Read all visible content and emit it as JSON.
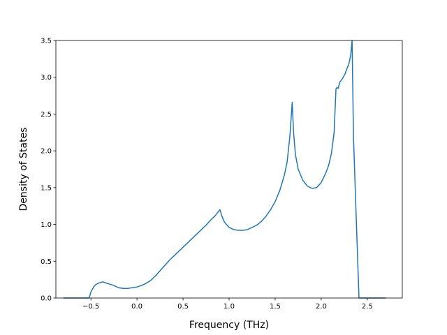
{
  "chart_data": {
    "type": "line",
    "title": "",
    "xlabel": "Frequency (THz)",
    "ylabel": "Density of States",
    "xlim": [
      -0.88,
      2.88
    ],
    "ylim": [
      0.0,
      3.5
    ],
    "xticks": [
      -0.5,
      0.0,
      0.5,
      1.0,
      1.5,
      2.0,
      2.5
    ],
    "xtick_labels": [
      "−0.5",
      "0.0",
      "0.5",
      "1.0",
      "1.5",
      "2.0",
      "2.5"
    ],
    "yticks": [
      0.0,
      0.5,
      1.0,
      1.5,
      2.0,
      2.5,
      3.0,
      3.5
    ],
    "ytick_labels": [
      "0.0",
      "0.5",
      "1.0",
      "1.5",
      "2.0",
      "2.5",
      "3.0",
      "3.5"
    ],
    "grid": false,
    "legend": false,
    "line_color": "#1f77b4",
    "series": [
      {
        "x": [
          -0.8,
          -0.52,
          -0.5,
          -0.47,
          -0.45,
          -0.42,
          -0.4,
          -0.37,
          -0.35,
          -0.3,
          -0.25,
          -0.2,
          -0.15,
          -0.1,
          -0.05,
          0.0,
          0.05,
          0.1,
          0.15,
          0.2,
          0.25,
          0.3,
          0.35,
          0.4,
          0.45,
          0.5,
          0.55,
          0.6,
          0.65,
          0.7,
          0.75,
          0.8,
          0.85,
          0.9,
          0.92,
          0.95,
          1.0,
          1.05,
          1.1,
          1.15,
          1.2,
          1.25,
          1.3,
          1.35,
          1.4,
          1.45,
          1.5,
          1.55,
          1.6,
          1.63,
          1.66,
          1.685,
          1.7,
          1.72,
          1.75,
          1.8,
          1.85,
          1.9,
          1.95,
          2.0,
          2.05,
          2.08,
          2.11,
          2.14,
          2.16,
          2.17,
          2.185,
          2.2,
          2.23,
          2.26,
          2.28,
          2.3,
          2.32,
          2.335,
          2.35,
          2.37,
          2.41,
          2.7
        ],
        "y": [
          0.0,
          0.0,
          0.08,
          0.15,
          0.18,
          0.2,
          0.21,
          0.22,
          0.21,
          0.19,
          0.17,
          0.14,
          0.13,
          0.13,
          0.14,
          0.15,
          0.17,
          0.2,
          0.24,
          0.3,
          0.37,
          0.44,
          0.51,
          0.57,
          0.63,
          0.69,
          0.75,
          0.81,
          0.87,
          0.93,
          0.99,
          1.06,
          1.12,
          1.2,
          1.12,
          1.03,
          0.96,
          0.93,
          0.92,
          0.92,
          0.93,
          0.96,
          0.99,
          1.04,
          1.11,
          1.2,
          1.31,
          1.46,
          1.67,
          1.85,
          2.2,
          2.66,
          2.25,
          1.95,
          1.75,
          1.6,
          1.52,
          1.49,
          1.5,
          1.57,
          1.7,
          1.8,
          1.96,
          2.25,
          2.84,
          2.86,
          2.85,
          2.93,
          2.98,
          3.05,
          3.12,
          3.18,
          3.3,
          3.5,
          2.2,
          1.45,
          0.0,
          0.0
        ]
      }
    ]
  }
}
